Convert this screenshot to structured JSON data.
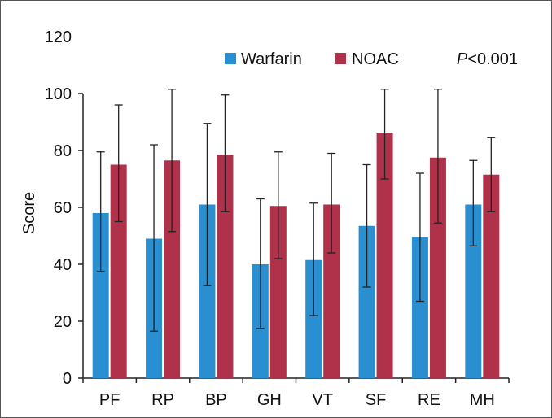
{
  "chart_data": {
    "type": "bar",
    "categories": [
      "PF",
      "RP",
      "BP",
      "GH",
      "VT",
      "SF",
      "RE",
      "MH"
    ],
    "series": [
      {
        "name": "Warfarin",
        "color": "#2a8fd0",
        "values": [
          58,
          49,
          61,
          40,
          41.5,
          53.5,
          49.5,
          61
        ],
        "error_low": [
          37.5,
          16.5,
          32.5,
          17.5,
          22,
          32,
          27,
          46.5
        ],
        "error_high": [
          79.5,
          82,
          89.5,
          63,
          61.5,
          75,
          72,
          76.5
        ]
      },
      {
        "name": "NOAC",
        "color": "#b0314a",
        "values": [
          75,
          76.5,
          78.5,
          60.5,
          61,
          86,
          77.5,
          71.5
        ],
        "error_low": [
          55,
          51.5,
          58.5,
          42,
          44,
          70,
          54.5,
          58.5
        ],
        "error_high": [
          96,
          101.5,
          99.5,
          79.5,
          79,
          101.5,
          101.5,
          84.5
        ]
      }
    ],
    "ylabel": "Score",
    "xlabel": "",
    "ylim": [
      0,
      120
    ],
    "yticks": [
      0,
      20,
      40,
      60,
      80,
      100,
      120
    ],
    "annotation": "P<0.001",
    "legend_position": "top-center",
    "grid": false
  }
}
